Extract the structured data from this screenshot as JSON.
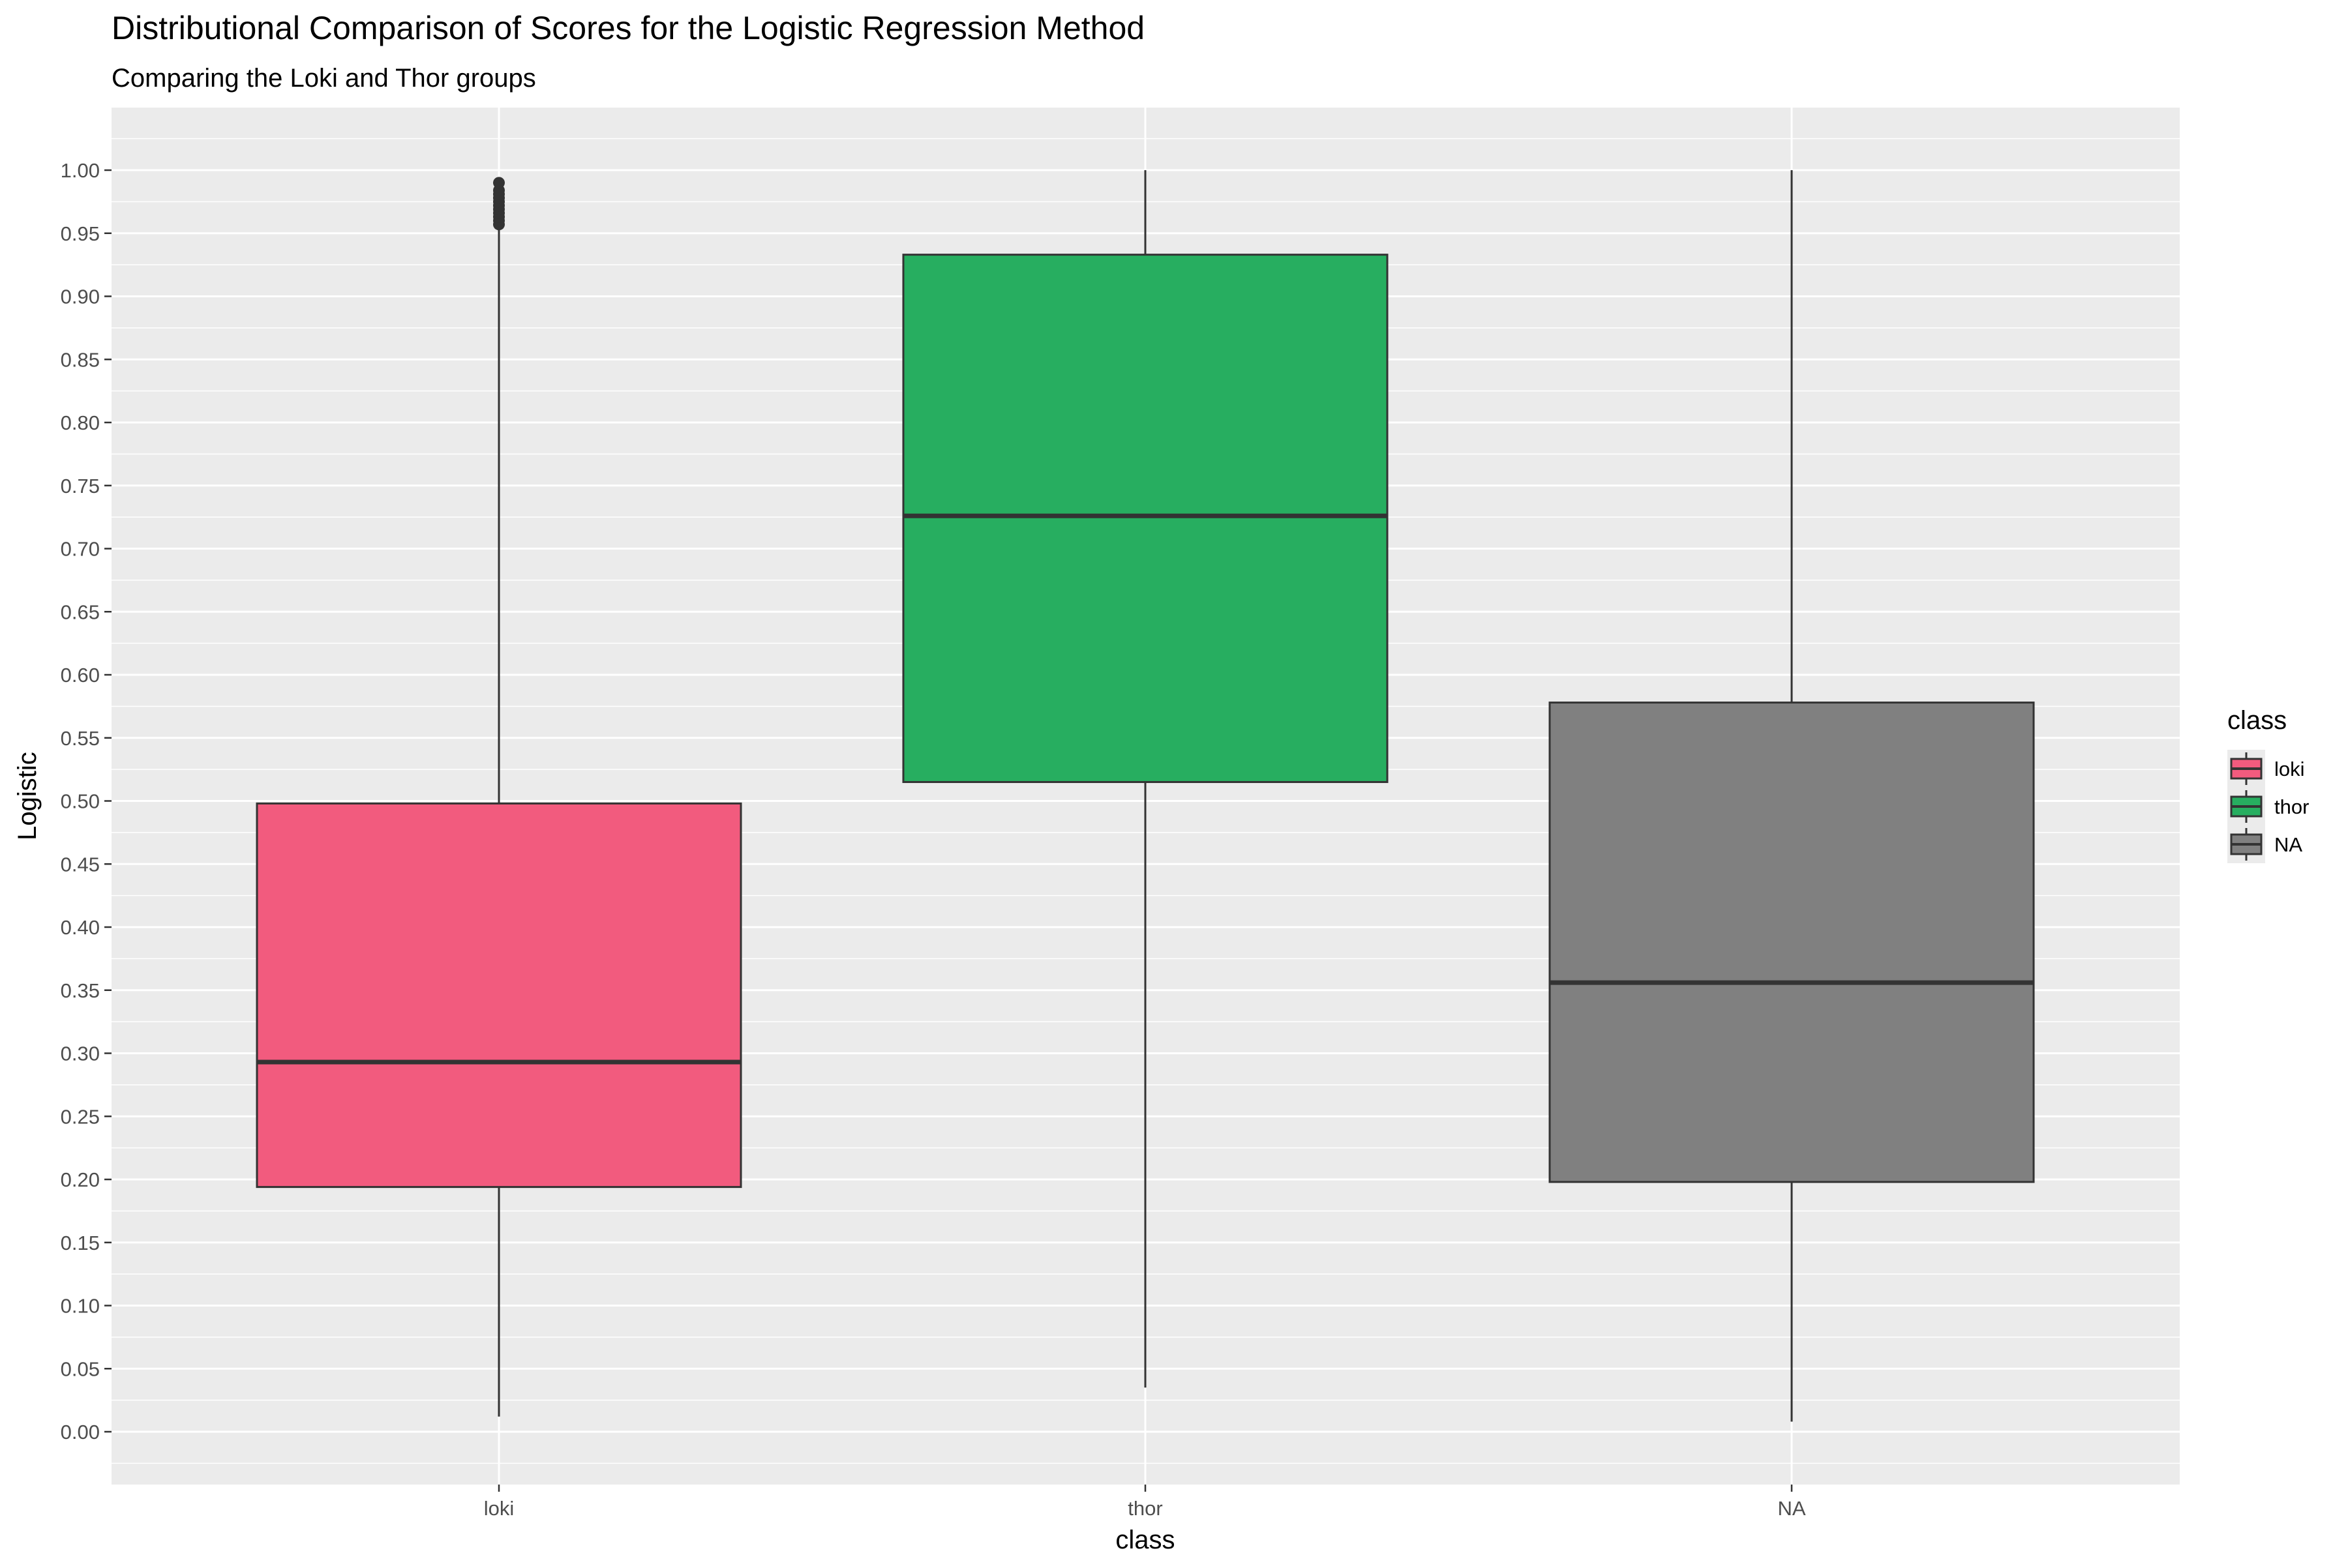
{
  "chart_data": {
    "type": "boxplot",
    "title": "Distributional Comparison of Scores for the Logistic Regression Method",
    "subtitle": "Comparing the Loki and Thor groups",
    "xlabel": "class",
    "ylabel": "Logistic",
    "ylim": [
      -0.04,
      1.06
    ],
    "yticks": [
      "0.00",
      "0.05",
      "0.10",
      "0.15",
      "0.20",
      "0.25",
      "0.30",
      "0.35",
      "0.40",
      "0.45",
      "0.50",
      "0.55",
      "0.60",
      "0.65",
      "0.70",
      "0.75",
      "0.80",
      "0.85",
      "0.90",
      "0.95",
      "1.00"
    ],
    "grid": true,
    "legend": {
      "title": "class",
      "position": "right"
    },
    "categories": [
      "loki",
      "thor",
      "NA"
    ],
    "series": [
      {
        "name": "loki",
        "color": "#f25b7e",
        "whisker_low": 0.012,
        "q1": 0.194,
        "median": 0.293,
        "q3": 0.498,
        "whisker_high": 0.955,
        "outliers": [
          0.957,
          0.96,
          0.963,
          0.966,
          0.969,
          0.972,
          0.975,
          0.978,
          0.981,
          0.984,
          0.99
        ]
      },
      {
        "name": "thor",
        "color": "#27ae60",
        "whisker_low": 0.035,
        "q1": 0.515,
        "median": 0.726,
        "q3": 0.933,
        "whisker_high": 1.0,
        "outliers": []
      },
      {
        "name": "NA",
        "color": "#808080",
        "whisker_low": 0.008,
        "q1": 0.198,
        "median": 0.356,
        "q3": 0.578,
        "whisker_high": 1.0,
        "outliers": []
      }
    ]
  }
}
